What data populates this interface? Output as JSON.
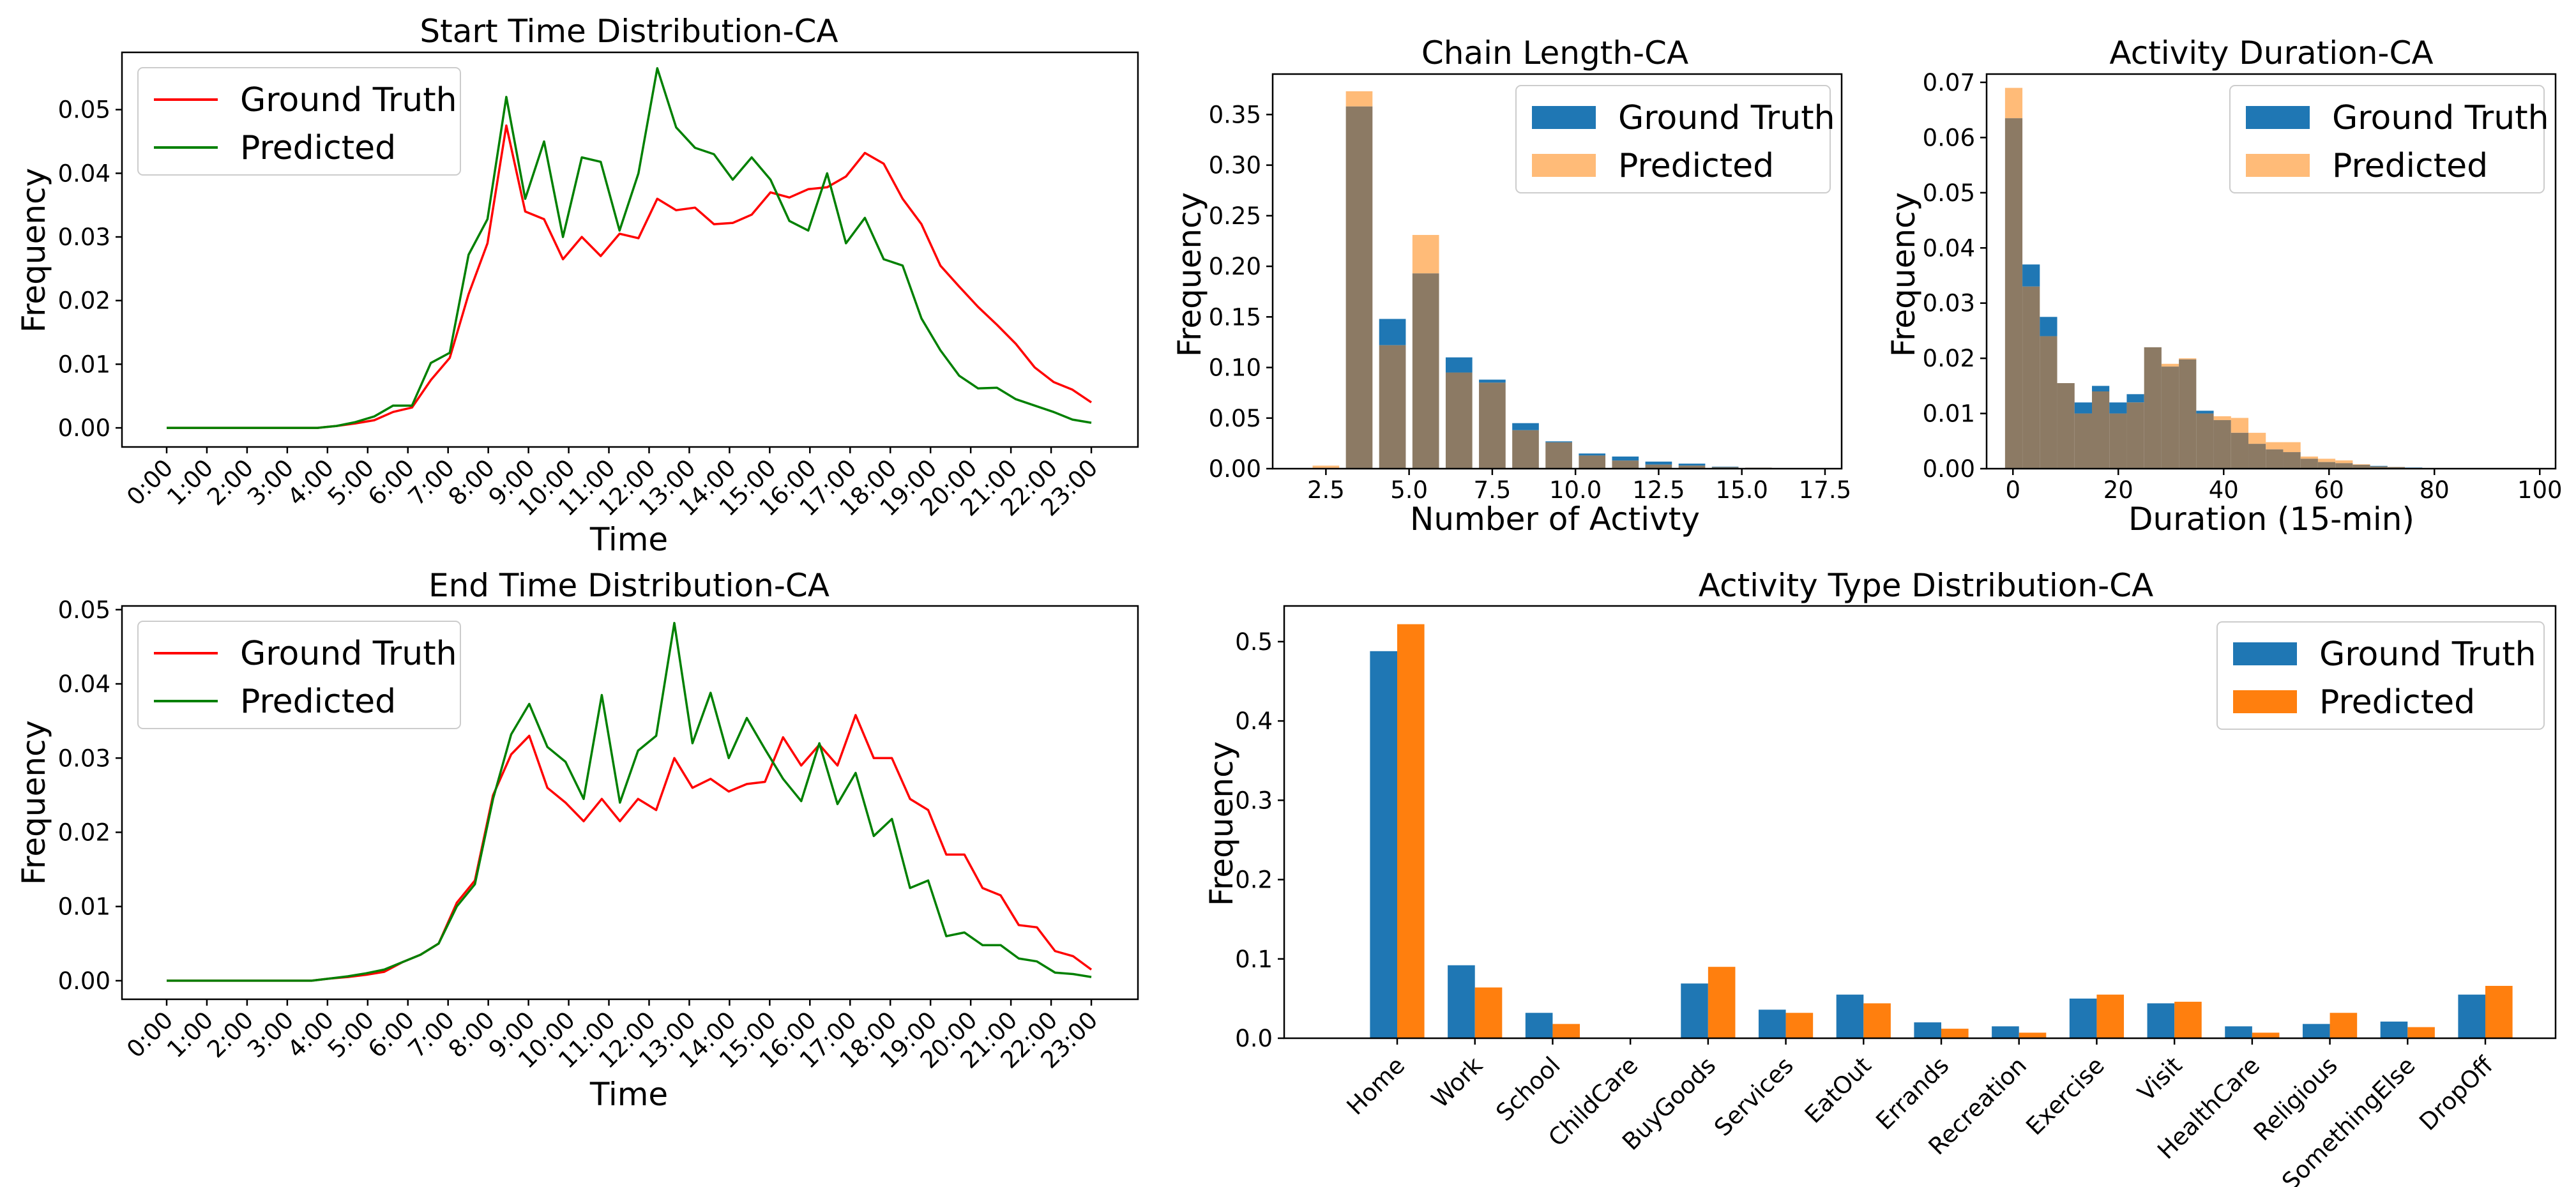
{
  "colors": {
    "ground_truth_line": "#ff0000",
    "predicted_line": "#008000",
    "ground_truth_bar": "#1f77b4",
    "predicted_bar": "#ff7f0e",
    "predicted_hist": "#ffbb78",
    "overlap_hist": "#8c7a64"
  },
  "chart_data": [
    {
      "id": "start",
      "type": "line",
      "title": "Start Time Distribution-CA",
      "xlabel": "Time",
      "ylabel": "Frequency",
      "ylim": [
        -0.003,
        0.059
      ],
      "yticks": [
        0.0,
        0.01,
        0.02,
        0.03,
        0.04,
        0.05
      ],
      "ytick_labels": [
        "0.00",
        "0.01",
        "0.02",
        "0.03",
        "0.04",
        "0.05"
      ],
      "xticks": [
        "0:00",
        "1:00",
        "2:00",
        "3:00",
        "4:00",
        "5:00",
        "6:00",
        "7:00",
        "8:00",
        "9:00",
        "10:00",
        "11:00",
        "12:00",
        "13:00",
        "14:00",
        "15:00",
        "16:00",
        "17:00",
        "18:00",
        "19:00",
        "20:00",
        "21:00",
        "22:00",
        "23:00"
      ],
      "legend": [
        "Ground Truth",
        "Predicted"
      ],
      "series": [
        {
          "name": "Ground Truth",
          "values": [
            0,
            0,
            0,
            0,
            0,
            0,
            0,
            0,
            0,
            0.0003,
            0.0007,
            0.0012,
            0.0025,
            0.0032,
            0.0075,
            0.011,
            0.021,
            0.029,
            0.0475,
            0.034,
            0.0328,
            0.0265,
            0.03,
            0.027,
            0.0305,
            0.0298,
            0.036,
            0.0342,
            0.0346,
            0.032,
            0.0322,
            0.0335,
            0.037,
            0.0362,
            0.0375,
            0.0378,
            0.0395,
            0.0432,
            0.0415,
            0.036,
            0.032,
            0.0255,
            0.0222,
            0.019,
            0.0162,
            0.0132,
            0.0095,
            0.0072,
            0.006,
            0.004
          ]
        },
        {
          "name": "Predicted",
          "values": [
            0,
            0,
            0,
            0,
            0,
            0,
            0,
            0,
            0,
            0.0003,
            0.0009,
            0.0018,
            0.0035,
            0.0035,
            0.0102,
            0.0118,
            0.0272,
            0.0328,
            0.052,
            0.036,
            0.045,
            0.03,
            0.0425,
            0.0418,
            0.031,
            0.04,
            0.0565,
            0.0472,
            0.044,
            0.043,
            0.039,
            0.0425,
            0.039,
            0.0325,
            0.031,
            0.04,
            0.029,
            0.033,
            0.0265,
            0.0255,
            0.0172,
            0.0122,
            0.0082,
            0.0062,
            0.0063,
            0.0045,
            0.0035,
            0.0025,
            0.0013,
            0.0008
          ]
        }
      ]
    },
    {
      "id": "end",
      "type": "line",
      "title": "End Time Distribution-CA",
      "xlabel": "Time",
      "ylabel": "Frequency",
      "ylim": [
        -0.0025,
        0.0505
      ],
      "yticks": [
        0.0,
        0.01,
        0.02,
        0.03,
        0.04,
        0.05
      ],
      "ytick_labels": [
        "0.00",
        "0.01",
        "0.02",
        "0.03",
        "0.04",
        "0.05"
      ],
      "xticks": [
        "0:00",
        "1:00",
        "2:00",
        "3:00",
        "4:00",
        "5:00",
        "6:00",
        "7:00",
        "8:00",
        "9:00",
        "10:00",
        "11:00",
        "12:00",
        "13:00",
        "14:00",
        "15:00",
        "16:00",
        "17:00",
        "18:00",
        "19:00",
        "20:00",
        "21:00",
        "22:00",
        "23:00"
      ],
      "legend": [
        "Ground Truth",
        "Predicted"
      ],
      "series": [
        {
          "name": "Ground Truth",
          "values": [
            0,
            0,
            0,
            0,
            0,
            0,
            0,
            0,
            0,
            0.0003,
            0.0005,
            0.0008,
            0.0012,
            0.0025,
            0.0035,
            0.005,
            0.0105,
            0.0135,
            0.025,
            0.0305,
            0.033,
            0.026,
            0.024,
            0.0215,
            0.0245,
            0.0215,
            0.0245,
            0.023,
            0.03,
            0.026,
            0.0272,
            0.0255,
            0.0265,
            0.0268,
            0.0328,
            0.029,
            0.0318,
            0.029,
            0.0358,
            0.03,
            0.03,
            0.0245,
            0.023,
            0.017,
            0.017,
            0.0125,
            0.0115,
            0.0075,
            0.0072,
            0.004,
            0.0033,
            0.0015
          ]
        },
        {
          "name": "Predicted",
          "values": [
            0,
            0,
            0,
            0,
            0,
            0,
            0,
            0,
            0,
            0.0003,
            0.0006,
            0.001,
            0.0015,
            0.0025,
            0.0035,
            0.005,
            0.01,
            0.013,
            0.0245,
            0.0332,
            0.0373,
            0.0315,
            0.0295,
            0.0245,
            0.0385,
            0.024,
            0.031,
            0.033,
            0.0482,
            0.032,
            0.0388,
            0.03,
            0.0354,
            0.0312,
            0.0272,
            0.0242,
            0.032,
            0.0238,
            0.028,
            0.0195,
            0.0218,
            0.0125,
            0.0135,
            0.006,
            0.0065,
            0.0048,
            0.0048,
            0.003,
            0.0026,
            0.0011,
            0.0009,
            0.0005
          ]
        }
      ]
    },
    {
      "id": "chain",
      "type": "bar",
      "title": "Chain Length-CA",
      "xlabel": "Number of Activty",
      "ylabel": "Frequency",
      "xlim": [
        0.9,
        18.0
      ],
      "ylim": [
        0,
        0.39
      ],
      "xticks": [
        2.5,
        5.0,
        7.5,
        10.0,
        12.5,
        15.0,
        17.5
      ],
      "xtick_labels": [
        "2.5",
        "5.0",
        "7.5",
        "10.0",
        "12.5",
        "15.0",
        "17.5"
      ],
      "yticks": [
        0,
        0.05,
        0.1,
        0.15,
        0.2,
        0.25,
        0.3,
        0.35
      ],
      "ytick_labels": [
        "0.00",
        "0.05",
        "0.10",
        "0.15",
        "0.20",
        "0.25",
        "0.30",
        "0.35"
      ],
      "legend": [
        "Ground Truth",
        "Predicted"
      ],
      "bins": [
        2,
        3,
        4,
        5,
        6,
        7,
        8,
        9,
        10,
        11,
        12,
        13,
        14,
        15,
        16,
        17
      ],
      "series": [
        {
          "name": "Ground Truth",
          "values": [
            0.0,
            0.358,
            0.148,
            0.193,
            0.11,
            0.088,
            0.045,
            0.027,
            0.015,
            0.012,
            0.007,
            0.005,
            0.002,
            0.001,
            0.0006,
            0.0003
          ]
        },
        {
          "name": "Predicted",
          "values": [
            0.003,
            0.373,
            0.122,
            0.231,
            0.095,
            0.085,
            0.038,
            0.026,
            0.013,
            0.008,
            0.004,
            0.003,
            0.0015,
            0.001,
            0.0005,
            0.0002
          ]
        }
      ]
    },
    {
      "id": "duration",
      "type": "bar",
      "title": "Activity Duration-CA",
      "xlabel": "Duration (15-min)",
      "ylabel": "Frequency",
      "xlim": [
        -5,
        103
      ],
      "ylim": [
        0,
        0.0715
      ],
      "xticks": [
        0,
        20,
        40,
        60,
        80,
        100
      ],
      "xtick_labels": [
        "0",
        "20",
        "40",
        "60",
        "80",
        "100"
      ],
      "yticks": [
        0,
        0.01,
        0.02,
        0.03,
        0.04,
        0.05,
        0.06,
        0.07
      ],
      "ytick_labels": [
        "0.00",
        "0.01",
        "0.02",
        "0.03",
        "0.04",
        "0.05",
        "0.06",
        "0.07"
      ],
      "legend": [
        "Ground Truth",
        "Predicted"
      ],
      "bin_start": -1.5,
      "bin_width": 3.3,
      "series": [
        {
          "name": "Ground Truth",
          "values": [
            0.0635,
            0.037,
            0.0275,
            0.0155,
            0.012,
            0.015,
            0.012,
            0.0135,
            0.022,
            0.0185,
            0.0198,
            0.0105,
            0.0088,
            0.0065,
            0.0045,
            0.0035,
            0.003,
            0.0018,
            0.0012,
            0.001,
            0.0007,
            0.0005,
            0.0003,
            0.0002,
            0.0001,
            0,
            0,
            0,
            0,
            0,
            0
          ]
        },
        {
          "name": "Predicted",
          "values": [
            0.069,
            0.033,
            0.024,
            0.0155,
            0.01,
            0.014,
            0.01,
            0.012,
            0.022,
            0.019,
            0.02,
            0.01,
            0.0095,
            0.0092,
            0.0065,
            0.0048,
            0.0048,
            0.0022,
            0.0018,
            0.0015,
            0.0008,
            0.0004,
            0.0003,
            0.0001,
            0,
            0,
            0,
            0,
            0,
            0,
            0
          ]
        }
      ]
    },
    {
      "id": "activity",
      "type": "bar",
      "title": "Activity Type Distribution-CA",
      "xlabel": "",
      "ylabel": "Frequency",
      "ylim": [
        0,
        0.545
      ],
      "yticks": [
        0,
        0.1,
        0.2,
        0.3,
        0.4,
        0.5
      ],
      "ytick_labels": [
        "0.0",
        "0.1",
        "0.2",
        "0.3",
        "0.4",
        "0.5"
      ],
      "categories": [
        "Home",
        "Work",
        "School",
        "ChildCare",
        "BuyGoods",
        "Services",
        "EatOut",
        "Errands",
        "Recreation",
        "Exercise",
        "Visit",
        "HealthCare",
        "Religious",
        "SomethingElse",
        "DropOff"
      ],
      "legend": [
        "Ground Truth",
        "Predicted"
      ],
      "series": [
        {
          "name": "Ground Truth",
          "values": [
            0.488,
            0.092,
            0.032,
            0.0005,
            0.069,
            0.036,
            0.055,
            0.02,
            0.015,
            0.05,
            0.044,
            0.015,
            0.018,
            0.021,
            0.055
          ]
        },
        {
          "name": "Predicted",
          "values": [
            0.522,
            0.064,
            0.018,
            0.0003,
            0.09,
            0.032,
            0.044,
            0.012,
            0.007,
            0.055,
            0.046,
            0.007,
            0.032,
            0.014,
            0.066
          ]
        }
      ]
    }
  ]
}
